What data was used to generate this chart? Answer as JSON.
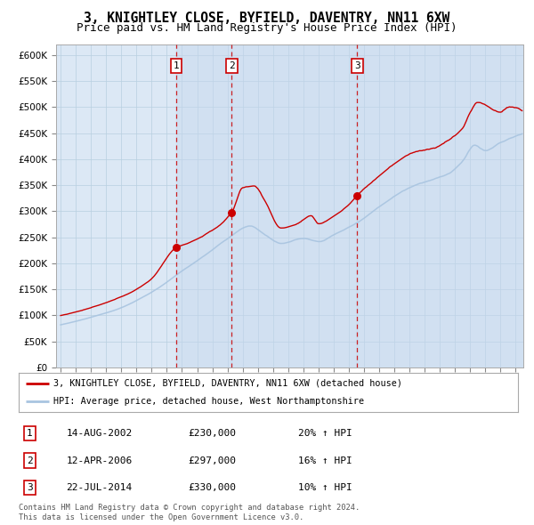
{
  "title": "3, KNIGHTLEY CLOSE, BYFIELD, DAVENTRY, NN11 6XW",
  "subtitle": "Price paid vs. HM Land Registry's House Price Index (HPI)",
  "legend_line1": "3, KNIGHTLEY CLOSE, BYFIELD, DAVENTRY, NN11 6XW (detached house)",
  "legend_line2": "HPI: Average price, detached house, West Northamptonshire",
  "footnote1": "Contains HM Land Registry data © Crown copyright and database right 2024.",
  "footnote2": "This data is licensed under the Open Government Licence v3.0.",
  "sales": [
    {
      "label": "1",
      "date": "14-AUG-2002",
      "price": 230000,
      "pct": "20%",
      "x": 2002.617
    },
    {
      "label": "2",
      "date": "12-APR-2006",
      "price": 297000,
      "pct": "16%",
      "x": 2006.278
    },
    {
      "label": "3",
      "date": "22-JUL-2014",
      "price": 330000,
      "pct": "10%",
      "x": 2014.556
    }
  ],
  "hpi_color": "#a8c4e0",
  "price_color": "#cc0000",
  "vline_color": "#cc0000",
  "bg_color": "#dce8f5",
  "grid_color": "#b8cfe0",
  "ylim": [
    0,
    620000
  ],
  "yticks": [
    0,
    50000,
    100000,
    150000,
    200000,
    250000,
    300000,
    350000,
    400000,
    450000,
    500000,
    550000,
    600000
  ],
  "xlim_start": 1994.7,
  "xlim_end": 2025.5,
  "title_fontsize": 10.5,
  "subtitle_fontsize": 9,
  "axis_fontsize": 7.5
}
